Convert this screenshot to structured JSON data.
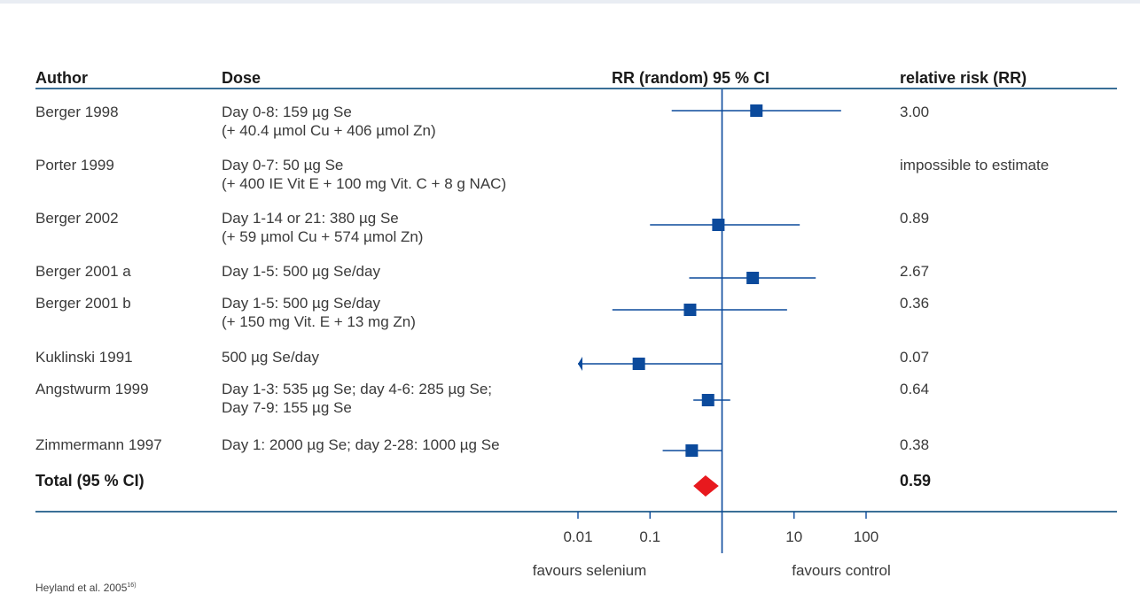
{
  "headers": {
    "author": "Author",
    "dose": "Dose",
    "ci": "RR (random) 95 % CI",
    "rr": "relative risk (RR)"
  },
  "studies": [
    {
      "author": "Berger 1998",
      "dose_line1": "Day 0-8: 159 µg Se",
      "dose_line2": "(+ 40.4 µmol Cu + 406 µmol Zn)",
      "rr_text": "3.00"
    },
    {
      "author": "Porter 1999",
      "dose_line1": "Day 0-7: 50 µg Se",
      "dose_line2": "(+ 400 IE Vit E + 100 mg Vit. C + 8 g NAC)",
      "rr_text": "impossible to estimate"
    },
    {
      "author": "Berger 2002",
      "dose_line1": "Day 1-14 or 21: 380 µg Se",
      "dose_line2": "(+ 59 µmol Cu + 574 µmol Zn)",
      "rr_text": "0.89"
    },
    {
      "author": "Berger 2001 a",
      "dose_line1": "Day 1-5: 500 µg Se/day",
      "dose_line2": "",
      "rr_text": "2.67"
    },
    {
      "author": "Berger 2001 b",
      "dose_line1": "Day 1-5: 500 µg Se/day",
      "dose_line2": "(+ 150 mg Vit. E + 13 mg Zn)",
      "rr_text": "0.36"
    },
    {
      "author": "Kuklinski 1991",
      "dose_line1": "500 µg Se/day",
      "dose_line2": "",
      "rr_text": "0.07"
    },
    {
      "author": "Angstwurm 1999",
      "dose_line1": "Day 1-3: 535 µg Se; day 4-6: 285 µg Se;",
      "dose_line2": "Day 7-9: 155 µg Se",
      "rr_text": "0.64"
    },
    {
      "author": "Zimmermann 1997",
      "dose_line1": "Day 1: 2000 µg Se; day 2-28: 1000 µg Se",
      "dose_line2": "",
      "rr_text": "0.38"
    }
  ],
  "total": {
    "label": "Total (95 % CI)",
    "rr_text": "0.59"
  },
  "axis": {
    "ticks": [
      "0.01",
      "0.1",
      "10",
      "100"
    ]
  },
  "favours": {
    "left": "favours selenium",
    "right": "favours control"
  },
  "source": {
    "text": "Heyland et al. 2005",
    "sup": "16)"
  },
  "colors": {
    "accent": "#0b4a9c",
    "rule": "#3a6f97",
    "diamond": "#e8191e"
  },
  "chart_data": {
    "type": "forest",
    "title": "RR (random) 95 % CI",
    "xscale": "log",
    "xlim": [
      0.01,
      100
    ],
    "xticks": [
      0.01,
      0.1,
      10,
      100
    ],
    "reference_line": 1,
    "points": [
      {
        "label": "Berger 1998",
        "rr": 3.0,
        "ci_low": 0.2,
        "ci_high": 45
      },
      {
        "label": "Porter 1999",
        "rr": null,
        "ci_low": null,
        "ci_high": null
      },
      {
        "label": "Berger 2002",
        "rr": 0.89,
        "ci_low": 0.1,
        "ci_high": 12
      },
      {
        "label": "Berger 2001 a",
        "rr": 2.67,
        "ci_low": 0.35,
        "ci_high": 20
      },
      {
        "label": "Berger 2001 b",
        "rr": 0.36,
        "ci_low": 0.03,
        "ci_high": 8
      },
      {
        "label": "Kuklinski 1991",
        "rr": 0.07,
        "ci_low": 0.01,
        "ci_high": 1,
        "ci_low_truncated": true
      },
      {
        "label": "Angstwurm 1999",
        "rr": 0.64,
        "ci_low": 0.4,
        "ci_high": 1.3
      },
      {
        "label": "Zimmermann 1997",
        "rr": 0.38,
        "ci_low": 0.15,
        "ci_high": 1
      }
    ],
    "total": {
      "label": "Total (95 % CI)",
      "rr": 0.59,
      "ci_low": 0.4,
      "ci_high": 0.9
    }
  }
}
